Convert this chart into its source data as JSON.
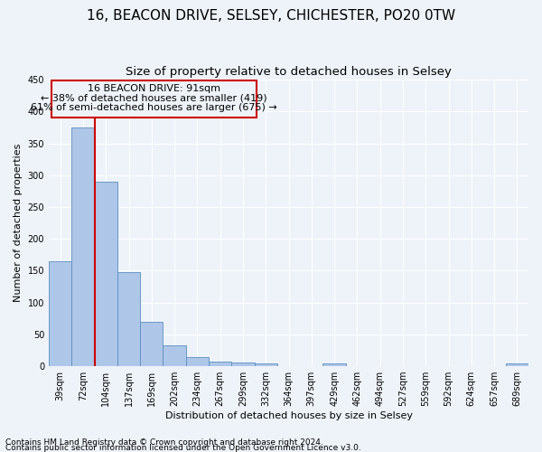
{
  "title": "16, BEACON DRIVE, SELSEY, CHICHESTER, PO20 0TW",
  "subtitle": "Size of property relative to detached houses in Selsey",
  "xlabel": "Distribution of detached houses by size in Selsey",
  "ylabel": "Number of detached properties",
  "categories": [
    "39sqm",
    "72sqm",
    "104sqm",
    "137sqm",
    "169sqm",
    "202sqm",
    "234sqm",
    "267sqm",
    "299sqm",
    "332sqm",
    "364sqm",
    "397sqm",
    "429sqm",
    "462sqm",
    "494sqm",
    "527sqm",
    "559sqm",
    "592sqm",
    "624sqm",
    "657sqm",
    "689sqm"
  ],
  "values": [
    165,
    375,
    290,
    148,
    70,
    33,
    14,
    7,
    6,
    5,
    0,
    0,
    4,
    0,
    0,
    0,
    0,
    0,
    0,
    0,
    4
  ],
  "bar_color": "#aec6e8",
  "bar_edge_color": "#5a8fc0",
  "marker_label": "16 BEACON DRIVE: 91sqm",
  "marker_line_color": "#cc0000",
  "annotation_line1": "← 38% of detached houses are smaller (419)",
  "annotation_line2": "61% of semi-detached houses are larger (675) →",
  "box_color": "#cc0000",
  "ylim": [
    0,
    450
  ],
  "yticks": [
    0,
    50,
    100,
    150,
    200,
    250,
    300,
    350,
    400,
    450
  ],
  "footnote1": "Contains HM Land Registry data © Crown copyright and database right 2024.",
  "footnote2": "Contains public sector information licensed under the Open Government Licence v3.0.",
  "bg_color": "#eef3f9",
  "grid_color": "#ffffff",
  "title_fontsize": 11,
  "subtitle_fontsize": 9.5,
  "axis_label_fontsize": 8,
  "tick_fontsize": 7,
  "annotation_fontsize": 8,
  "footnote_fontsize": 6.5
}
